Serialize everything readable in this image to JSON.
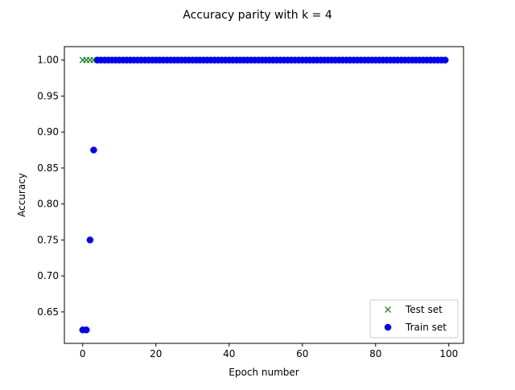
{
  "chart_data": {
    "type": "scatter",
    "title": "Accuracy parity with k = 4",
    "xlabel": "Epoch number",
    "ylabel": "Accuracy",
    "xlim": [
      -5,
      104
    ],
    "ylim": [
      0.6063,
      1.0187
    ],
    "xticks": [
      0,
      20,
      40,
      60,
      80,
      100
    ],
    "xtick_labels": [
      "0",
      "20",
      "40",
      "60",
      "80",
      "100"
    ],
    "yticks": [
      0.65,
      0.7,
      0.75,
      0.8,
      0.85,
      0.9,
      0.95,
      1.0
    ],
    "ytick_labels": [
      "0.65",
      "0.70",
      "0.75",
      "0.80",
      "0.85",
      "0.90",
      "0.95",
      "1.00"
    ],
    "grid": false,
    "legend_position": "lower-right",
    "series": [
      {
        "name": "Test set",
        "marker": "x",
        "color": "#008000",
        "points": [
          [
            0,
            1.0
          ],
          [
            1,
            1.0
          ],
          [
            2,
            1.0
          ],
          [
            3,
            1.0
          ],
          [
            4,
            1.0
          ]
        ]
      },
      {
        "name": "Train set",
        "marker": "circle",
        "color": "#0000ff",
        "points": [
          [
            0,
            0.625
          ],
          [
            1,
            0.625
          ],
          [
            2,
            0.75
          ],
          [
            3,
            0.875
          ]
        ],
        "constant_from": 4,
        "constant_to": 99,
        "constant_value": 1.0
      }
    ]
  }
}
